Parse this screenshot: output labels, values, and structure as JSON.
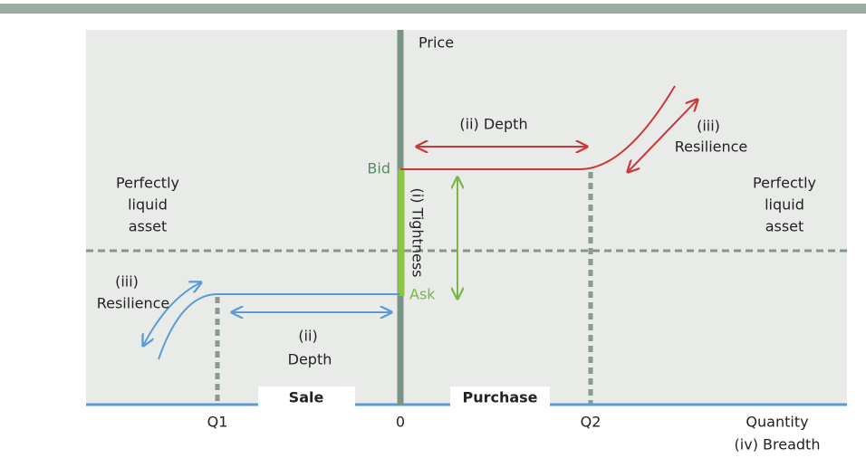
{
  "axis": {
    "price": "Price",
    "bid": "Bid",
    "ask": "Ask",
    "zero": "0",
    "q1": "Q1",
    "q2": "Q2",
    "quantity": "Quantity",
    "breadth": "(iv) Breadth"
  },
  "tightness": "(i) Tightness",
  "depth_top": "(ii) Depth",
  "resilience_right": {
    "number": "(iii)",
    "label": "Resilience"
  },
  "resilience_left": {
    "number": "(iii)",
    "label": "Resilience"
  },
  "depth_bottom": {
    "number": "(ii)",
    "label": "Depth"
  },
  "liquid_left": [
    "Perfectly",
    "liquid",
    "asset"
  ],
  "liquid_right": [
    "Perfectly",
    "liquid",
    "asset"
  ],
  "sale": "Sale",
  "purchase": "Purchase"
}
